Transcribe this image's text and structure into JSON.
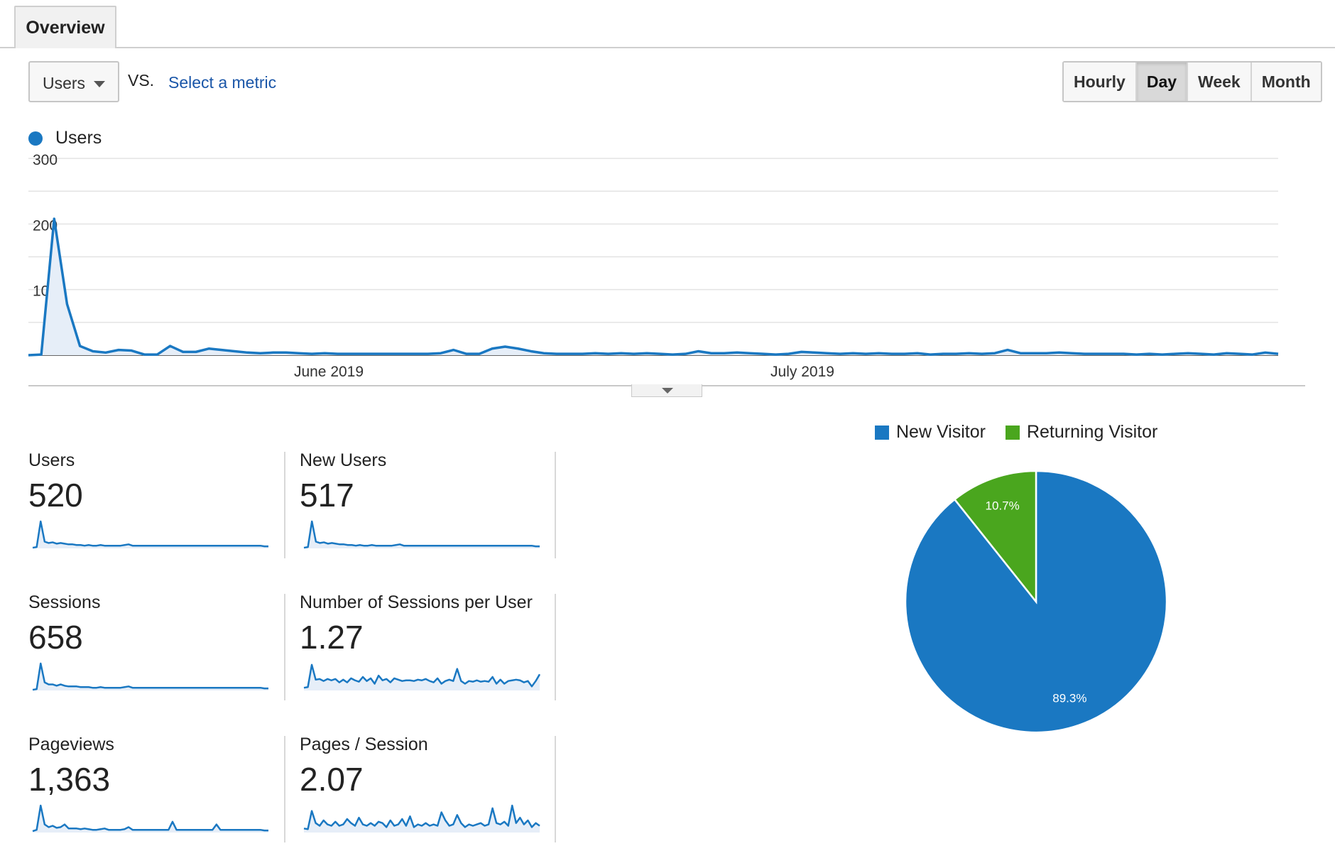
{
  "tab": {
    "overview_label": "Overview"
  },
  "controls": {
    "metric_selected": "Users",
    "vs_label": "VS.",
    "select_metric_label": "Select a metric",
    "periods": [
      {
        "label": "Hourly",
        "active": false
      },
      {
        "label": "Day",
        "active": true
      },
      {
        "label": "Week",
        "active": false
      },
      {
        "label": "Month",
        "active": false
      }
    ]
  },
  "colors": {
    "primary": "#1a78c2",
    "returning": "#4aa61e",
    "fill": "#e6eef8"
  },
  "icons": {
    "dropdown": "chevron-down-icon",
    "collapse": "collapse-caret-icon"
  },
  "chart_data": [
    {
      "type": "area",
      "series": [
        {
          "name": "Users",
          "values": [
            0,
            1,
            208,
            78,
            14,
            6,
            4,
            8,
            7,
            1,
            1,
            14,
            5,
            5,
            10,
            8,
            6,
            4,
            3,
            4,
            4,
            3,
            2,
            3,
            2,
            2,
            2,
            2,
            2,
            2,
            2,
            2,
            3,
            8,
            2,
            2,
            10,
            13,
            10,
            6,
            3,
            2,
            2,
            2,
            3,
            2,
            3,
            2,
            3,
            2,
            1,
            2,
            6,
            3,
            3,
            4,
            3,
            2,
            1,
            2,
            5,
            4,
            3,
            2,
            3,
            2,
            3,
            2,
            2,
            3,
            1,
            2,
            2,
            3,
            2,
            3,
            8,
            3,
            3,
            3,
            4,
            3,
            2,
            2,
            2,
            2,
            1,
            2,
            1,
            2,
            3,
            2,
            1,
            3,
            2,
            1,
            4,
            2
          ]
        }
      ],
      "x_labels": [
        "June 2019",
        "July 2019"
      ],
      "y_ticks": [
        "300",
        "200",
        "100"
      ],
      "ylim": [
        0,
        300
      ],
      "grid": true,
      "legend": "top-left"
    },
    {
      "type": "pie",
      "slices": [
        {
          "name": "New Visitor",
          "value": 89.3,
          "label": "89.3%"
        },
        {
          "name": "Returning Visitor",
          "value": 10.7,
          "label": "10.7%"
        }
      ],
      "legend": "top"
    }
  ],
  "stats": [
    {
      "label": "Users",
      "value": "520",
      "spark": [
        1,
        2,
        40,
        10,
        8,
        9,
        7,
        8,
        7,
        6,
        6,
        5,
        5,
        4,
        5,
        4,
        4,
        5,
        4,
        4,
        4,
        4,
        4,
        5,
        6,
        4,
        4,
        4,
        4,
        4,
        4,
        4,
        4,
        4,
        4,
        4,
        4,
        4,
        4,
        4,
        4,
        4,
        4,
        4,
        4,
        4,
        4,
        4,
        4,
        4,
        4,
        4,
        4,
        4,
        4,
        4,
        4,
        4,
        3,
        3
      ]
    },
    {
      "label": "New Users",
      "value": "517",
      "spark": [
        1,
        2,
        40,
        10,
        8,
        9,
        7,
        8,
        7,
        6,
        6,
        5,
        5,
        4,
        5,
        4,
        4,
        5,
        4,
        4,
        4,
        4,
        4,
        5,
        6,
        4,
        4,
        4,
        4,
        4,
        4,
        4,
        4,
        4,
        4,
        4,
        4,
        4,
        4,
        4,
        4,
        4,
        4,
        4,
        4,
        4,
        4,
        4,
        4,
        4,
        4,
        4,
        4,
        4,
        4,
        4,
        4,
        4,
        3,
        3
      ]
    },
    {
      "label": "Sessions",
      "value": "658",
      "spark": [
        1,
        2,
        40,
        12,
        9,
        9,
        7,
        9,
        7,
        6,
        6,
        6,
        5,
        5,
        5,
        4,
        4,
        5,
        4,
        4,
        4,
        4,
        4,
        5,
        6,
        4,
        4,
        4,
        4,
        4,
        4,
        4,
        4,
        4,
        4,
        4,
        4,
        4,
        4,
        4,
        4,
        4,
        4,
        4,
        4,
        4,
        4,
        4,
        4,
        4,
        4,
        4,
        4,
        4,
        4,
        4,
        4,
        4,
        3,
        3
      ]
    },
    {
      "label": "Number of Sessions per User",
      "value": "1.27",
      "spark": [
        4,
        5,
        38,
        16,
        17,
        14,
        17,
        15,
        17,
        12,
        16,
        12,
        18,
        15,
        13,
        20,
        14,
        18,
        10,
        22,
        15,
        17,
        12,
        18,
        16,
        14,
        15,
        15,
        14,
        16,
        15,
        17,
        14,
        12,
        18,
        10,
        14,
        16,
        14,
        32,
        14,
        10,
        14,
        13,
        15,
        13,
        14,
        13,
        20,
        10,
        16,
        10,
        14,
        15,
        16,
        15,
        12,
        14,
        6,
        14,
        24
      ]
    },
    {
      "label": "Pageviews",
      "value": "1,363",
      "spark": [
        2,
        4,
        40,
        12,
        8,
        10,
        7,
        8,
        12,
        6,
        6,
        6,
        5,
        6,
        5,
        4,
        4,
        5,
        6,
        4,
        4,
        4,
        4,
        5,
        8,
        4,
        4,
        4,
        4,
        4,
        4,
        4,
        4,
        4,
        4,
        16,
        4,
        4,
        4,
        4,
        4,
        4,
        4,
        4,
        4,
        4,
        12,
        4,
        4,
        4,
        4,
        4,
        4,
        4,
        4,
        4,
        4,
        4,
        3,
        3
      ]
    },
    {
      "label": "Pages / Session",
      "value": "2.07",
      "spark": [
        6,
        5,
        32,
        14,
        10,
        18,
        12,
        10,
        16,
        10,
        12,
        20,
        14,
        10,
        22,
        12,
        10,
        14,
        10,
        16,
        14,
        8,
        18,
        10,
        12,
        20,
        10,
        24,
        8,
        12,
        10,
        14,
        10,
        12,
        10,
        30,
        18,
        10,
        12,
        26,
        14,
        8,
        12,
        10,
        12,
        14,
        10,
        12,
        36,
        14,
        12,
        16,
        10,
        40,
        14,
        22,
        12,
        18,
        8,
        14,
        10
      ]
    }
  ]
}
